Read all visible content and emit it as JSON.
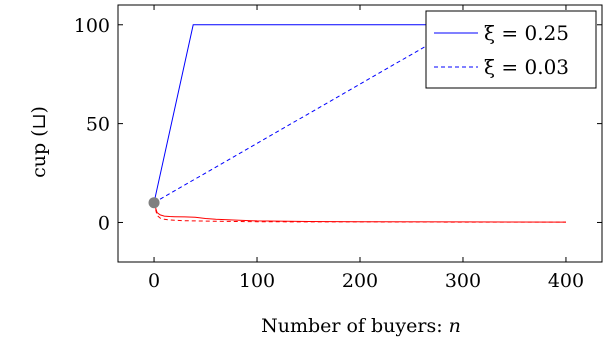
{
  "chart_data": {
    "type": "line",
    "xlabel": "Number of buyers: n",
    "ylabel": "cup (⊔)",
    "xlim": [
      -35,
      435
    ],
    "ylim": [
      -20,
      110
    ],
    "xticks": [
      0,
      100,
      200,
      300,
      400
    ],
    "yticks": [
      0,
      50,
      100
    ],
    "xtick_labels": [
      "0",
      "100",
      "200",
      "300",
      "400"
    ],
    "ytick_labels": [
      "0",
      "50",
      "100"
    ],
    "grid": false,
    "legend_position": "top-right",
    "series": [
      {
        "name": "ξ = 0.25",
        "color": "#0000ff",
        "style": "solid",
        "x": [
          0,
          38,
          400
        ],
        "y": [
          10,
          100,
          100
        ]
      },
      {
        "name": "ξ = 0.03",
        "color": "#0000ff",
        "style": "dashed",
        "x": [
          0,
          300,
          400
        ],
        "y": [
          10,
          100,
          100
        ]
      },
      {
        "name": "",
        "color": "#ff0000",
        "style": "solid",
        "x": [
          0,
          3,
          6,
          10,
          15,
          20,
          30,
          40,
          50,
          60,
          80,
          100,
          150,
          200,
          300,
          400
        ],
        "y": [
          10,
          5,
          3.8,
          3.2,
          3,
          2.9,
          2.8,
          2.6,
          2,
          1.6,
          1.2,
          0.8,
          0.5,
          0.4,
          0.3,
          0.2
        ]
      },
      {
        "name": "",
        "color": "#ff0000",
        "style": "dashed",
        "x": [
          0,
          3,
          6,
          10,
          15,
          20,
          30,
          50,
          80,
          100,
          150,
          200,
          300,
          400
        ],
        "y": [
          10,
          3.5,
          2.2,
          1.6,
          1.3,
          1.1,
          0.9,
          0.7,
          0.5,
          0.4,
          0.3,
          0.3,
          0.2,
          0.2
        ]
      }
    ],
    "markers": [
      {
        "x": 0,
        "y": 10,
        "color": "#808080"
      }
    ]
  }
}
